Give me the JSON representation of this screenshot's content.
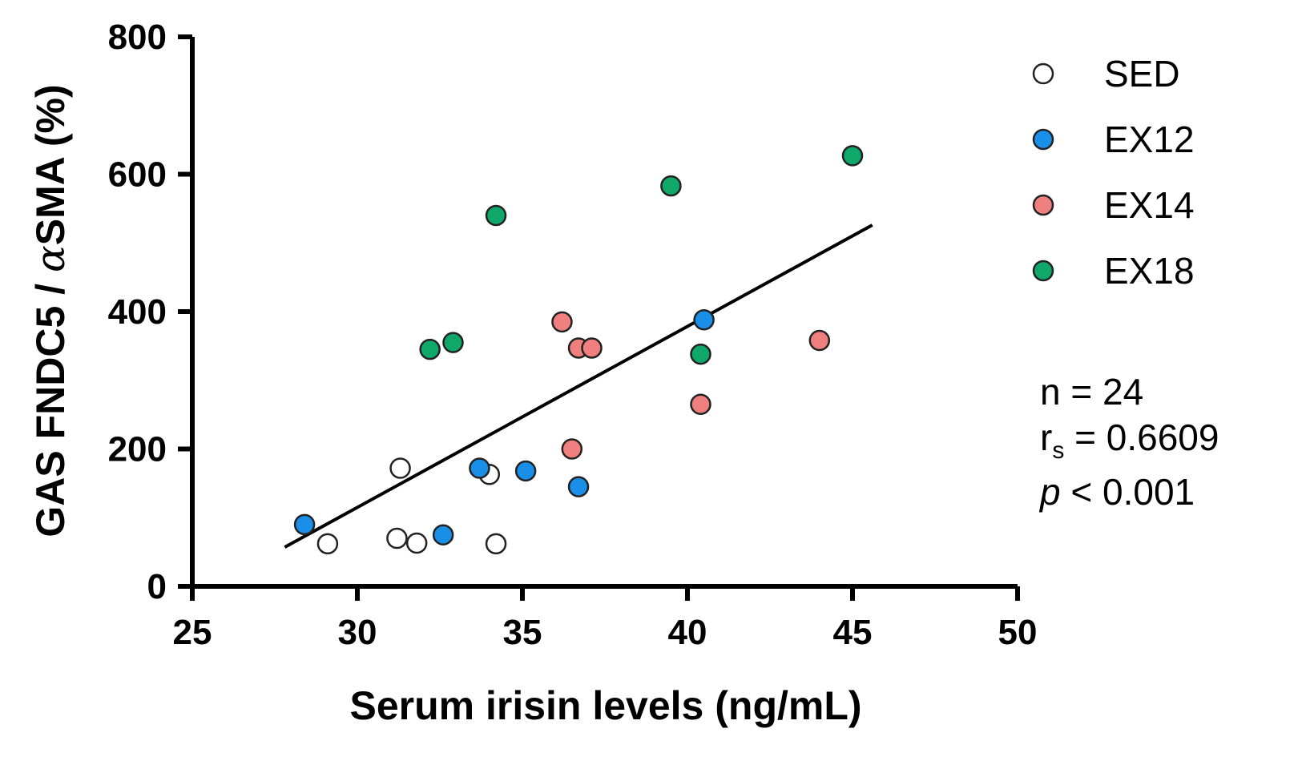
{
  "chart_data": {
    "type": "scatter",
    "xlabel": "Serum irisin levels (ng/mL)",
    "ylabel_prefix": "GAS FNDC5 / ",
    "ylabel_symbol": "α",
    "ylabel_suffix": "SMA (%)",
    "xlim": [
      25,
      50
    ],
    "ylim": [
      0,
      800
    ],
    "xticks": [
      25,
      30,
      35,
      40,
      45,
      50
    ],
    "yticks": [
      0,
      200,
      400,
      600,
      800
    ],
    "grid": false,
    "legend_position": "top-right",
    "series": [
      {
        "name": "SED",
        "fill": "#ffffff",
        "points": [
          {
            "x": 29.1,
            "y": 62
          },
          {
            "x": 31.2,
            "y": 70
          },
          {
            "x": 31.3,
            "y": 172
          },
          {
            "x": 31.8,
            "y": 63
          },
          {
            "x": 34.0,
            "y": 163
          },
          {
            "x": 34.2,
            "y": 62
          }
        ]
      },
      {
        "name": "EX12",
        "fill": "#1a8fe8",
        "points": [
          {
            "x": 28.4,
            "y": 90
          },
          {
            "x": 32.6,
            "y": 75
          },
          {
            "x": 33.7,
            "y": 172
          },
          {
            "x": 35.1,
            "y": 168
          },
          {
            "x": 36.7,
            "y": 145
          },
          {
            "x": 40.5,
            "y": 388
          }
        ]
      },
      {
        "name": "EX14",
        "fill": "#f08080",
        "points": [
          {
            "x": 36.2,
            "y": 385
          },
          {
            "x": 36.5,
            "y": 200
          },
          {
            "x": 36.7,
            "y": 347
          },
          {
            "x": 37.1,
            "y": 347
          },
          {
            "x": 40.4,
            "y": 265
          },
          {
            "x": 44.0,
            "y": 358
          }
        ]
      },
      {
        "name": "EX18",
        "fill": "#0fa86a",
        "points": [
          {
            "x": 32.2,
            "y": 345
          },
          {
            "x": 32.9,
            "y": 355
          },
          {
            "x": 34.2,
            "y": 540
          },
          {
            "x": 39.5,
            "y": 583
          },
          {
            "x": 40.4,
            "y": 338
          },
          {
            "x": 45.0,
            "y": 627
          }
        ]
      }
    ],
    "regression_line": {
      "x": [
        27.8,
        45.6
      ],
      "y": [
        57,
        526
      ]
    },
    "stats": {
      "n_text": "n = 24",
      "r_symbol": "r",
      "r_subscript": "s",
      "r_value": " = 0.6609",
      "p_symbol": "p",
      "p_value": " < 0.001"
    }
  }
}
